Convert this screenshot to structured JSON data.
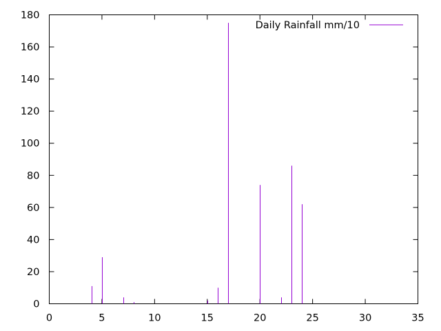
{
  "chart_data": {
    "type": "bar",
    "style": "impulses",
    "series": [
      {
        "name": "Daily Rainfall mm/10",
        "color": "#9400d3",
        "x": [
          4,
          5,
          7,
          8,
          15,
          16,
          17,
          20,
          22,
          23,
          24
        ],
        "values": [
          11,
          29,
          4,
          1,
          2,
          10,
          175,
          74,
          4,
          86,
          62
        ]
      }
    ],
    "xlim": [
      0,
      35
    ],
    "ylim": [
      0,
      180
    ],
    "xticks": [
      0,
      5,
      10,
      15,
      20,
      25,
      30,
      35
    ],
    "yticks": [
      0,
      20,
      40,
      60,
      80,
      100,
      120,
      140,
      160,
      180
    ],
    "legend_position": "top-right",
    "grid": false
  }
}
